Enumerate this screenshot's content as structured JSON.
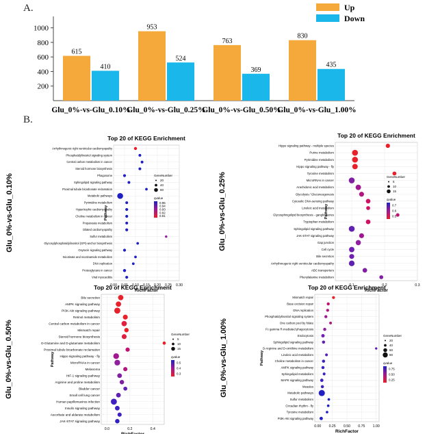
{
  "panel_a_label": "A.",
  "panel_b_label": "B.",
  "chart_data": [
    {
      "type": "bar",
      "categories": [
        "Glu_0%-vs-Glu_0.10%",
        "Glu_0%-vs-Glu_0.25%",
        "Glu_0%-vs-Glu_0.50%",
        "Glu_0%-vs-Glu_1.00%"
      ],
      "series": [
        {
          "name": "Up",
          "values": [
            615,
            953,
            763,
            830
          ],
          "color": "#f5a93a"
        },
        {
          "name": "Down",
          "values": [
            410,
            524,
            369,
            435
          ],
          "color": "#19b7ea"
        }
      ],
      "yticks": [
        200,
        400,
        600,
        800,
        1000
      ],
      "ylim": [
        0,
        1100
      ],
      "legend": "top-right"
    },
    {
      "type": "scatter",
      "side_label": "Glu_0%-vs-Glu_0.10%",
      "title": "Top 20 of KEGG Enrichment",
      "xlabel": "RichFactor",
      "ylabel": "Pathway",
      "xlim": [
        0,
        0.3
      ],
      "xticks": [
        "0.00",
        "0.05",
        "0.10",
        "0.15",
        "0.20",
        "0.25",
        "0.30"
      ],
      "size_legend_title": "GeneNumber",
      "size_legend": [
        "20",
        "40",
        "60"
      ],
      "color_legend_title": "qvalue",
      "color_legend": [
        "0.95",
        "0.94",
        "0.93",
        "0.92",
        "0.91"
      ],
      "pathways": [
        "Arrhythmogenic right ventricular cardiomyopathy",
        "Phosphatidylinositol signaling system",
        "Central carbon metabolism in cancer",
        "Steroid hormone biosynthesis",
        "Phagosome",
        "Sphingolipid signaling pathway",
        "Proximal tubule bicarbonate reclamation",
        "Metabolic pathways",
        "Pyrimidine metabolism",
        "Hypertrophic cardiomyopathy",
        "Choline metabolism in cancer",
        "Propanoate metabolism",
        "Dilated cardiomyopathy",
        "Sulfur metabolism",
        "Glycosylphosphatidylinositol (GPI)-anchor biosynthesis",
        "Oxytocin signaling pathway",
        "Nicotinate and nicotinamide metabolism",
        "DNA replication",
        "Proteoglycans in cancer",
        "Viral myocarditis"
      ],
      "x": [
        0.1,
        0.12,
        0.13,
        0.12,
        0.05,
        0.07,
        0.15,
        0.03,
        0.06,
        0.06,
        0.06,
        0.06,
        0.06,
        0.24,
        0.11,
        0.05,
        0.1,
        0.09,
        0.05,
        0.06
      ],
      "size": [
        6,
        4,
        4,
        4,
        5,
        4,
        3,
        50,
        4,
        5,
        5,
        4,
        5,
        2,
        3,
        5,
        3,
        3,
        6,
        5
      ],
      "color": [
        "#e8202a",
        "#2020c0",
        "#2020c0",
        "#2020c0",
        "#2020c0",
        "#2020c0",
        "#2020c0",
        "#2020c0",
        "#2020c0",
        "#2020c0",
        "#2020c0",
        "#2020c0",
        "#2020c0",
        "#9020a0",
        "#2020c0",
        "#2020c0",
        "#2020c0",
        "#2020c0",
        "#2020c0",
        "#2020c0"
      ]
    },
    {
      "type": "scatter",
      "side_label": "Glu_0%-vs-Glu_0.25%",
      "title": "Top 20 of KEGG Enrichment",
      "xlabel": "RichFactor",
      "ylabel": "Pathway",
      "xlim": [
        0.05,
        0.3
      ],
      "xticks": [
        "0.1",
        "0.2",
        "0.3"
      ],
      "size_legend_title": "GeneNumber",
      "size_legend": [
        "5",
        "10",
        "15"
      ],
      "color_legend_title": "qvalue",
      "color_legend": [
        "0.7",
        "0.6",
        "0.5"
      ],
      "pathways": [
        "Hippo signaling pathway - multiple species",
        "Purine metabolism",
        "Pyrimidine metabolism",
        "Hippo signaling pathway - fly",
        "Tyrosine metabolism",
        "MicroRNAs in cancer",
        "Arachidonic acid metabolism",
        "Glycolysis / Gluconeogenesis",
        "Cytosolic DNA-sensing pathway",
        "Linoleic acid metabolism",
        "Glycosphingolipid biosynthesis - ganglio series",
        "Tryptophan metabolism",
        "Sphingolipid signaling pathway",
        "JAK-STAT signaling pathway",
        "Gap junction",
        "Cell cycle",
        "Bile secretion",
        "Arrhythmogenic right ventricular cardiomyopathy",
        "ABC transporters",
        "Phenylalanine metabolism"
      ],
      "x": [
        0.21,
        0.11,
        0.11,
        0.11,
        0.23,
        0.1,
        0.12,
        0.13,
        0.15,
        0.15,
        0.24,
        0.15,
        0.1,
        0.13,
        0.12,
        0.1,
        0.1,
        0.1,
        0.14,
        0.19
      ],
      "size": [
        4,
        10,
        10,
        8,
        3,
        10,
        8,
        6,
        5,
        3,
        2,
        5,
        10,
        6,
        7,
        8,
        6,
        9,
        5,
        3
      ],
      "color": [
        "#e8202a",
        "#e8202a",
        "#e8202a",
        "#e8202a",
        "#e8202a",
        "#8020a0",
        "#a01890",
        "#b01880",
        "#d01060",
        "#d01060",
        "#c01070",
        "#d01060",
        "#6020b0",
        "#a01890",
        "#9020a0",
        "#7020b0",
        "#7020b0",
        "#6020b0",
        "#8020a0",
        "#8020a0"
      ]
    },
    {
      "type": "scatter",
      "side_label": "Glu_0%-vs-Glu_0.50%",
      "title": "Top 20 of KEGG Enrichment",
      "xlabel": "RichFactor",
      "ylabel": "Pathway",
      "xlim": [
        -0.05,
        0.5
      ],
      "xticks": [
        "0.0",
        "0.2",
        "0.4"
      ],
      "size_legend_title": "GeneNumber",
      "size_legend": [
        "5",
        "10",
        "15"
      ],
      "color_legend_title": "qvalue",
      "color_legend": [
        "0.5",
        "0.4",
        "0.3"
      ],
      "pathways": [
        "Bile secretion",
        "AMPK signaling pathway",
        "PI3K-Akt signaling pathway",
        "Retinol metabolism",
        "Central carbon metabolism in cancer",
        "Mismatch repair",
        "Steroid hormone biosynthesis",
        "D-Glutamine and D-glutamate metabolism",
        "Proximal tubule bicarbonate reclamation",
        "Hippo signaling pathway - fly",
        "MicroRNAs in cancer",
        "Melanoma",
        "HIF-1 signaling pathway",
        "Arginine and proline metabolism",
        "Bladder cancer",
        "Small cell lung cancer",
        "Human papillomavirus infection",
        "Insulin signaling pathway",
        "Ascorbate and aldarate metabolism",
        "JAK-STAT signaling pathway"
      ],
      "x": [
        0.12,
        0.1,
        0.09,
        0.16,
        0.15,
        0.17,
        0.15,
        0.5,
        0.18,
        0.08,
        0.09,
        0.16,
        0.11,
        0.13,
        0.16,
        0.1,
        0.06,
        0.09,
        0.11,
        0.09
      ],
      "size": [
        10,
        10,
        14,
        8,
        10,
        6,
        8,
        2,
        5,
        12,
        12,
        5,
        7,
        6,
        4,
        7,
        14,
        7,
        5,
        6
      ],
      "color": [
        "#e8202a",
        "#e8202a",
        "#e8202a",
        "#e8202a",
        "#e02040",
        "#e8202a",
        "#e02040",
        "#e8202a",
        "#c01070",
        "#a01890",
        "#9020a0",
        "#b01880",
        "#8020a0",
        "#8020a0",
        "#6020b0",
        "#6020b0",
        "#4020c0",
        "#4020c0",
        "#4020c0",
        "#3020c0"
      ]
    },
    {
      "type": "scatter",
      "side_label": "Glu_0%-vs-Glu_1.00%",
      "title": "Top 20 of KEGG Enrichment",
      "xlabel": "RichFactor",
      "ylabel": "Pathway",
      "xlim": [
        -0.05,
        1.05
      ],
      "xticks": [
        "0.00",
        "0.25",
        "0.50",
        "0.75",
        "1.00"
      ],
      "size_legend_title": "GeneNumber",
      "size_legend": [
        "20",
        "40",
        "60",
        "80"
      ],
      "color_legend_title": "qvalue",
      "color_legend": [
        "0.75",
        "0.50",
        "0.25"
      ],
      "pathways": [
        "Mismatch repair",
        "Base excision repair",
        "DNA replication",
        "Phosphatidylinositol signaling system",
        "One carbon pool by folate",
        "Fc gamma R-mediated phagocytosis",
        "Endocytosis",
        "Sphingolipid signaling pathway",
        "D-Arginine and D-ornithine metabolism",
        "Linoleic acid metabolism",
        "Choline metabolism in cancer",
        "AMPK signaling pathway",
        "Sphingolipid metabolism",
        "MAPK signaling pathway",
        "Measles",
        "Metabolic pathways",
        "Sulfur metabolism",
        "Circadian rhythm - fly",
        "Tyrosine metabolism",
        "PI3K-Akt signaling pathway"
      ],
      "x": [
        0.27,
        0.18,
        0.17,
        0.14,
        0.22,
        0.12,
        0.09,
        0.1,
        1.0,
        0.15,
        0.1,
        0.09,
        0.11,
        0.07,
        0.08,
        0.07,
        0.19,
        0.18,
        0.16,
        0.06
      ],
      "size": [
        5,
        6,
        6,
        6,
        4,
        7,
        10,
        7,
        2,
        4,
        7,
        7,
        5,
        9,
        7,
        60,
        3,
        3,
        3,
        9
      ],
      "color": [
        "#e8202a",
        "#c01070",
        "#b01880",
        "#a01890",
        "#b01880",
        "#9020a0",
        "#7020b0",
        "#6020b0",
        "#6020b0",
        "#5020b8",
        "#4020c0",
        "#4020c0",
        "#4020c0",
        "#4020c0",
        "#4020c0",
        "#2020c0",
        "#2020c0",
        "#2020c0",
        "#2020c0",
        "#2020c0"
      ]
    }
  ]
}
